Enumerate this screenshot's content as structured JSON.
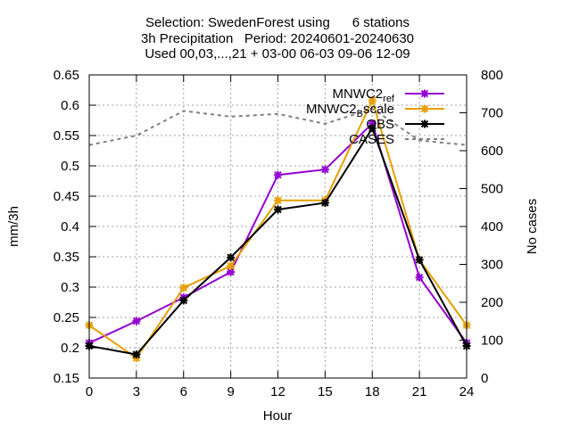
{
  "chart_data": {
    "type": "line",
    "title_lines": [
      "Selection: SwedenForest using      6 stations",
      "3h Precipitation   Period: 20240601-20240630",
      "Used 00,03,...,21 + 03-00 06-03 09-06 12-09"
    ],
    "xlabel": "Hour",
    "ylabel": "mm/3h",
    "y2label": "No cases",
    "x": [
      0,
      3,
      6,
      9,
      12,
      15,
      18,
      21,
      24
    ],
    "xticks": [
      "0",
      "3",
      "6",
      "9",
      "12",
      "15",
      "18",
      "21",
      "24"
    ],
    "xlim": [
      0,
      24
    ],
    "ylim": [
      0.15,
      0.65
    ],
    "yticks": [
      "0.15",
      "0.2",
      "0.25",
      "0.3",
      "0.35",
      "0.4",
      "0.45",
      "0.5",
      "0.55",
      "0.6",
      "0.65"
    ],
    "y2lim": [
      0,
      800
    ],
    "y2ticks": [
      "0",
      "100",
      "200",
      "300",
      "400",
      "500",
      "600",
      "700",
      "800"
    ],
    "grid": true,
    "legend_position": "top-right",
    "series": [
      {
        "name": "MNWC2_ref",
        "name_main": "MNWC2",
        "name_sub": "ref",
        "color": "#9400d3",
        "axis": "y",
        "values": [
          0.208,
          0.244,
          0.283,
          0.325,
          0.485,
          0.494,
          0.57,
          0.316,
          0.208
        ]
      },
      {
        "name": "MNWC2_Bscale",
        "name_main": "MNWC2",
        "name_sub": "B",
        "name_rest": "scale",
        "color": "#e69f00",
        "axis": "y",
        "values": [
          0.237,
          0.183,
          0.299,
          0.335,
          0.443,
          0.443,
          0.608,
          0.345,
          0.237
        ]
      },
      {
        "name": "OBS",
        "color": "#000000",
        "axis": "y",
        "values": [
          0.203,
          0.189,
          0.278,
          0.349,
          0.428,
          0.439,
          0.562,
          0.345,
          0.203
        ]
      },
      {
        "name": "CASES",
        "color": "#808080",
        "axis": "y2",
        "dashed": true,
        "values": [
          615,
          640,
          705,
          690,
          697,
          671,
          711,
          627,
          615
        ]
      }
    ]
  }
}
